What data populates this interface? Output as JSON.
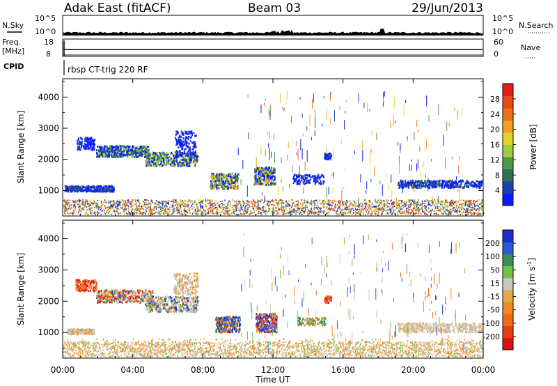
{
  "header": {
    "station": "Adak East (fitACF)",
    "beam": "Beam 03",
    "date": "29/Jun/2013"
  },
  "control_panels": {
    "nsky_label": "N.Sky",
    "nsky_ticks": [
      "10^5",
      "10^0"
    ],
    "nsearch_label": "N.Search",
    "nsearch_ticks": [
      "10^5",
      "10^0"
    ],
    "freq_label": "Freq.",
    "freq_unit": "[MHz]",
    "freq_ticks": [
      "18",
      "8"
    ],
    "nave_label": "Nave",
    "nave_ticks": [
      "60",
      "0"
    ],
    "cpid_label": "CPID",
    "cpid_value": "rbsp CT-trig 220 RF"
  },
  "chart_data": [
    {
      "type": "heatmap",
      "name": "power",
      "ylabel": "Slant Range [km]",
      "yticks": [
        1000,
        2000,
        3000,
        4000
      ],
      "ylim": [
        180,
        4590
      ],
      "xlim_hours": [
        0,
        24
      ],
      "colorbar": {
        "label": "Power [dB]",
        "ticks": [
          "4",
          "8",
          "12",
          "16",
          "20",
          "24",
          "28"
        ],
        "colors": [
          "#0a1aff",
          "#1f3fb8",
          "#2f6f52",
          "#4f9a47",
          "#9acf3c",
          "#e8d22a",
          "#f2a020",
          "#f07018",
          "#ea4a14",
          "#e01e10"
        ]
      }
    },
    {
      "type": "heatmap",
      "name": "velocity",
      "ylabel": "Slant Range [km]",
      "yticks": [
        1000,
        2000,
        3000,
        4000
      ],
      "ylim": [
        180,
        4590
      ],
      "xlim_hours": [
        0,
        24
      ],
      "colorbar": {
        "label": "Velocity [m s^-1]",
        "ticks": [
          "200",
          "100",
          "50",
          "15",
          "-15",
          "-50",
          "-100",
          "-200"
        ],
        "colors": [
          "#1a2fd0",
          "#2a5ad6",
          "#3d8e52",
          "#6fc24a",
          "#c8c8c0",
          "#e8a848",
          "#f08a20",
          "#f06a18",
          "#e83a14",
          "#e01010"
        ]
      }
    }
  ],
  "time_axis": {
    "label": "Time UT",
    "ticks": [
      "00:00",
      "04:00",
      "08:00",
      "12:00",
      "16:00",
      "20:00",
      "00:00"
    ]
  }
}
